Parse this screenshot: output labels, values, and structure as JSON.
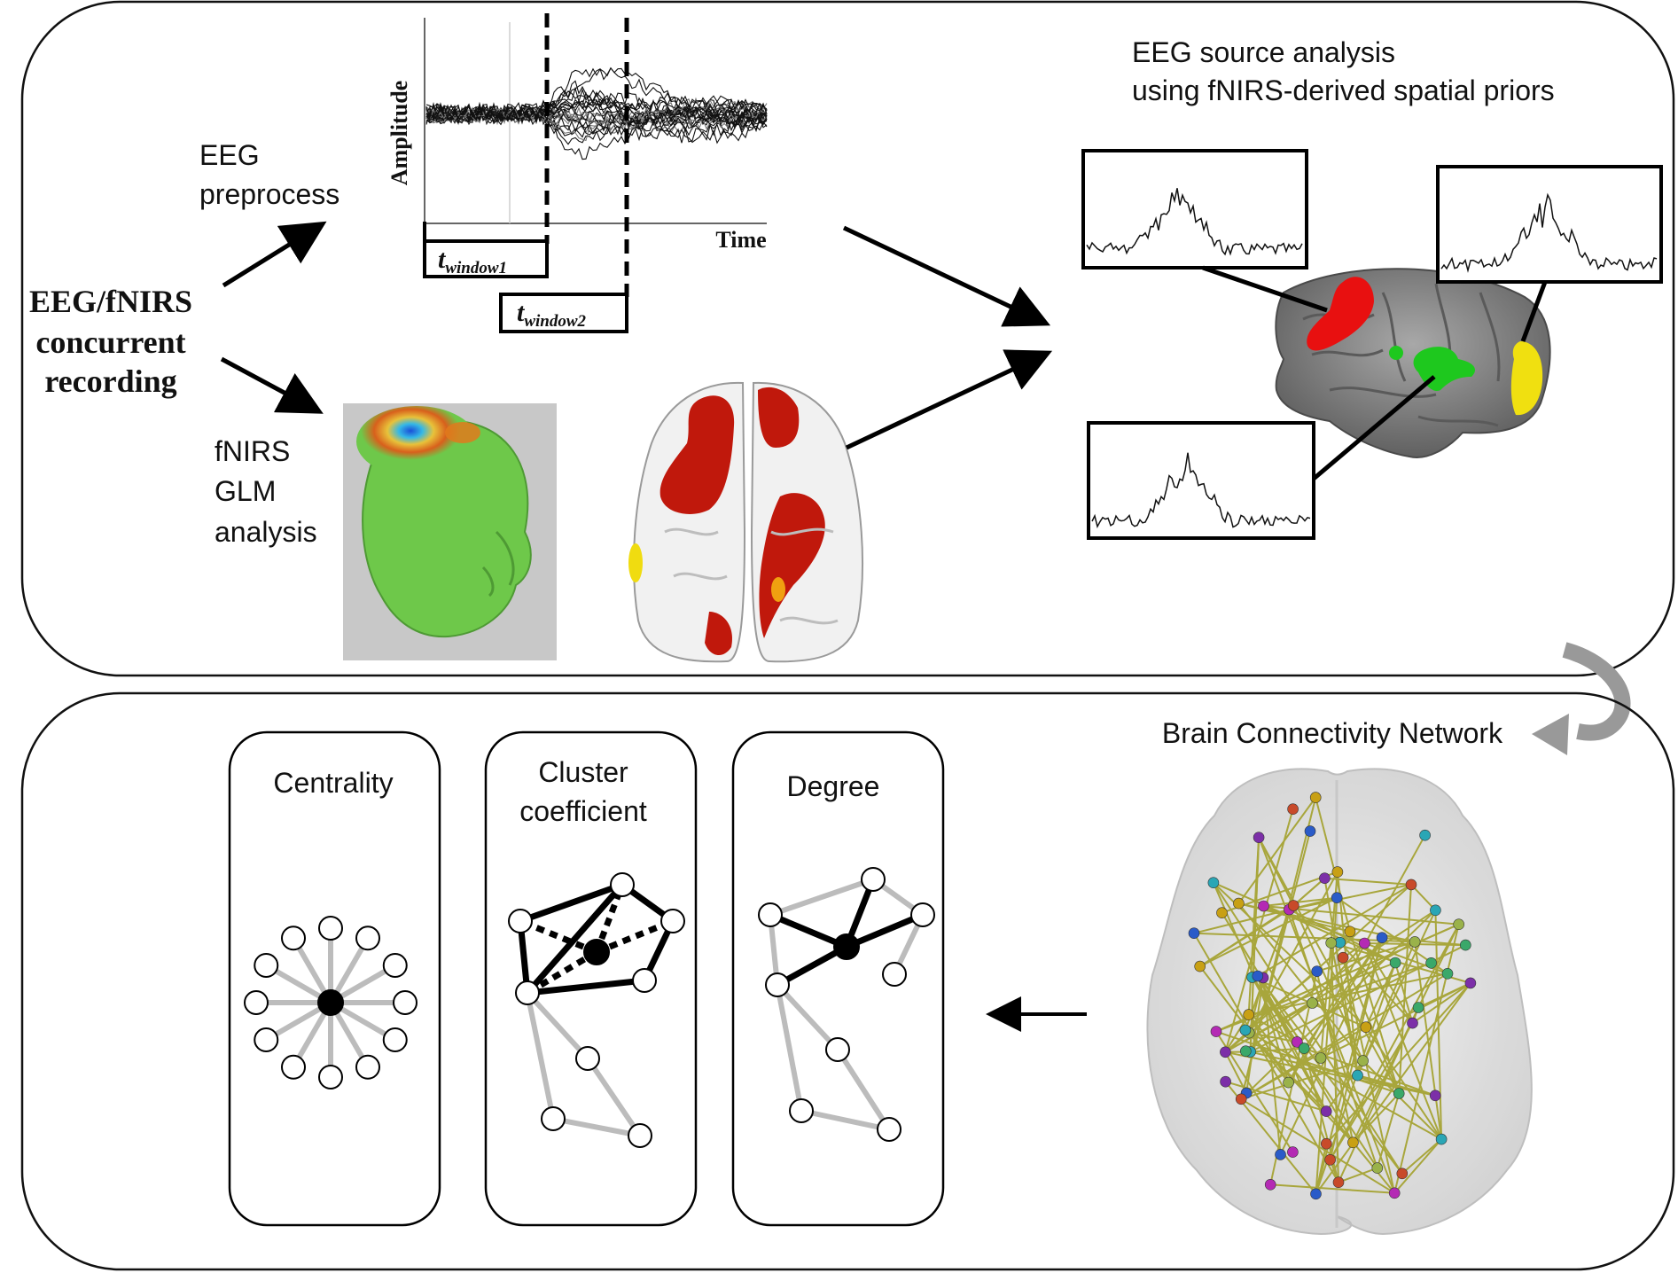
{
  "recording": {
    "line1": "EEG/fNIRS",
    "line2": "concurrent",
    "line3": "recording"
  },
  "eeg_preprocess": {
    "line1": "EEG",
    "line2": "preprocess"
  },
  "fnirs_glm": {
    "line1": "fNIRS",
    "line2": "GLM",
    "line3": "analysis"
  },
  "eeg_plot": {
    "ylabel": "Amplitude",
    "xlabel": "Time",
    "window1_base": "t",
    "window1_sub": "window1",
    "window2_base": "t",
    "window2_sub": "window2"
  },
  "source_analysis": {
    "line1": "EEG source analysis",
    "line2": "using fNIRS-derived spatial priors"
  },
  "network": {
    "title": "Brain Connectivity Network",
    "node_colors": [
      "#7c2fa8",
      "#2aa6b5",
      "#c8a014",
      "#2a5bc8",
      "#9ab24a",
      "#c84a2a",
      "#b42ab4",
      "#3aa86a"
    ],
    "edge_color": "#a8a63c"
  },
  "metrics": {
    "centrality": "Centrality",
    "cluster_line1": "Cluster",
    "cluster_line2": "coefficient",
    "degree": "Degree"
  },
  "colors": {
    "activation_red": "#c0180c",
    "activation_yellow": "#f0dc10",
    "activation_green": "#1ec81e",
    "scalp_green": "#6ec84a",
    "brain_gray": "#8c8c8c"
  }
}
